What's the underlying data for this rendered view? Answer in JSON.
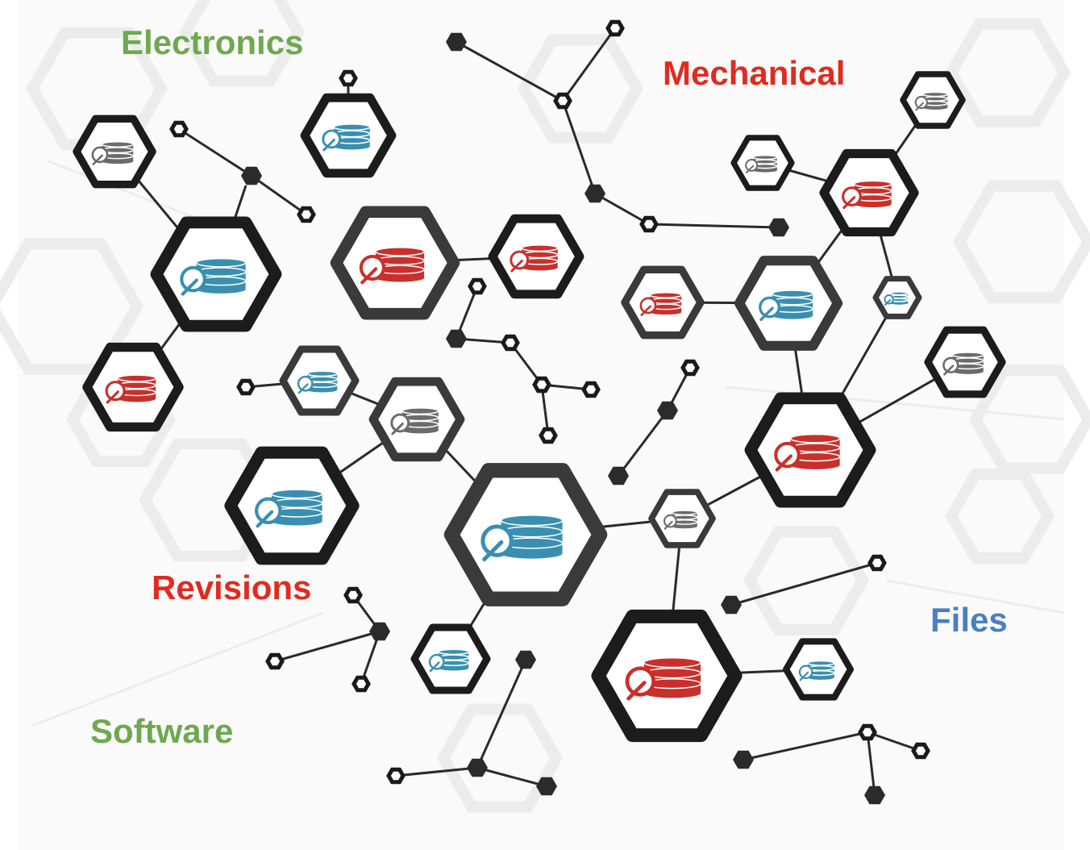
{
  "labels": {
    "electronics": "Electronics",
    "mechanical": "Mechanical",
    "revisions": "Revisions",
    "software": "Software",
    "files": "Files"
  },
  "colors": {
    "green": "#6ea84f",
    "red": "#e02b20",
    "blue": "#4a7fc1",
    "icon_red": "#c8302c",
    "icon_teal": "#3a8fb0",
    "icon_gray": "#6b6b6b",
    "frame_dark": "#1c1c1c",
    "frame_gray": "#3a3a3a",
    "line": "#2a2a2a",
    "bg_hex": "#ececec"
  },
  "nodes": [
    {
      "name": "database-tools-node",
      "icon": "database-tools-icon",
      "color": "gray"
    },
    {
      "name": "database-wrench-node",
      "icon": "database-wrench-icon",
      "color": "teal"
    },
    {
      "name": "database-stopwatch-node",
      "icon": "database-stopwatch-icon",
      "color": "teal"
    },
    {
      "name": "database-search-node",
      "icon": "database-search-icon",
      "color": "red"
    },
    {
      "name": "database-flag-node",
      "icon": "database-flag-icon",
      "color": "red"
    },
    {
      "name": "database-alert-node",
      "icon": "database-alert-icon",
      "color": "red"
    },
    {
      "name": "database-calendar-node",
      "icon": "database-calendar-icon",
      "color": "gray"
    },
    {
      "name": "database-cut-node",
      "icon": "database-cut-icon",
      "color": "red"
    },
    {
      "name": "database-report-node",
      "icon": "database-report-icon",
      "color": "gray"
    },
    {
      "name": "database-mail-node",
      "icon": "database-mail-icon",
      "color": "red"
    },
    {
      "name": "database-support-node",
      "icon": "database-support-icon",
      "color": "teal"
    },
    {
      "name": "database-home-node",
      "icon": "database-home-icon",
      "color": "teal"
    },
    {
      "name": "database-refresh-node",
      "icon": "database-refresh-icon",
      "color": "gray"
    },
    {
      "name": "database-network-node",
      "icon": "database-network-icon",
      "color": "teal"
    },
    {
      "name": "database-user-node",
      "icon": "database-user-icon",
      "color": "gray"
    },
    {
      "name": "database-firewall-node",
      "icon": "database-firewall-icon",
      "color": "red"
    },
    {
      "name": "database-pulse-node",
      "icon": "database-pulse-icon",
      "color": "teal"
    },
    {
      "name": "database-world-node",
      "icon": "database-world-icon",
      "color": "teal"
    },
    {
      "name": "database-lightning-node",
      "icon": "database-lightning-icon",
      "color": "gray"
    },
    {
      "name": "database-globe-node",
      "icon": "database-globe-icon",
      "color": "teal"
    },
    {
      "name": "database-checklist-node",
      "icon": "database-checklist-icon",
      "color": "red"
    },
    {
      "name": "database-hands-node",
      "icon": "database-hands-icon",
      "color": "teal"
    }
  ]
}
